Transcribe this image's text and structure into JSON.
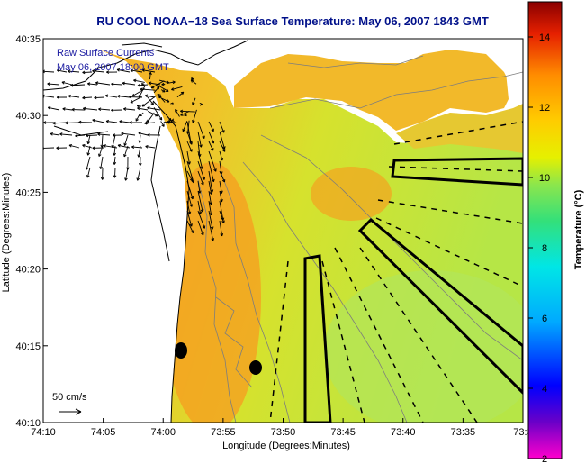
{
  "title": "RU COOL  NOAA−18  Sea Surface Temperature:  May 06, 2007 1843 GMT",
  "legend": {
    "line1": "Raw Surface Currents",
    "line2": "May 06, 2007 18:00 GMT"
  },
  "scale_label": "50 cm/s",
  "axes": {
    "xlabel": "Longitude (Degrees:Minutes)",
    "ylabel": "Latitude (Degrees:Minutes)",
    "xticks": [
      "74:10",
      "74:05",
      "74:00",
      "73:55",
      "73:50",
      "73:45",
      "73:40",
      "73:35",
      "73:3"
    ],
    "yticks": [
      "40:35",
      "40:30",
      "40:25",
      "40:20",
      "40:15",
      "40:10"
    ]
  },
  "colorbar": {
    "label": "Temperature (°C)",
    "ticks": [
      "14",
      "12",
      "10",
      "8",
      "6",
      "4",
      "2"
    ],
    "min": 2,
    "max": 15,
    "colors": [
      "#ff00cc",
      "#6a00c8",
      "#0000ff",
      "#00aaff",
      "#00e6e6",
      "#33e07a",
      "#8ce64c",
      "#e6f000",
      "#ffcc00",
      "#ff8c00",
      "#e62000",
      "#8a0000"
    ]
  }
}
